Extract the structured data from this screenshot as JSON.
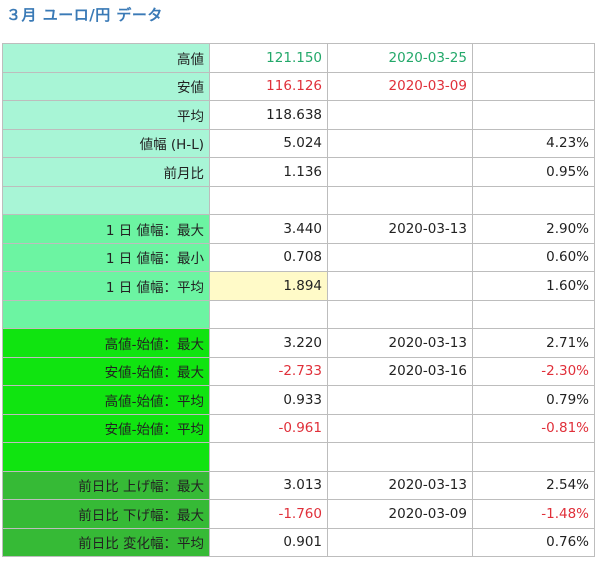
{
  "title": "３月 ユーロ/円 データ",
  "rows": [
    {
      "label": "高値",
      "value": "121.150",
      "date": "2020-03-25",
      "pct": "",
      "band": "g1",
      "value_color": "green",
      "date_color": "green",
      "pct_color": ""
    },
    {
      "label": "安値",
      "value": "116.126",
      "date": "2020-03-09",
      "pct": "",
      "band": "g1",
      "value_color": "red",
      "date_color": "red",
      "pct_color": ""
    },
    {
      "label": "平均",
      "value": "118.638",
      "date": "",
      "pct": "",
      "band": "g1",
      "value_color": "",
      "date_color": "",
      "pct_color": ""
    },
    {
      "label": "値幅 (H-L)",
      "value": "5.024",
      "date": "",
      "pct": "4.23%",
      "band": "g1",
      "value_color": "",
      "date_color": "",
      "pct_color": ""
    },
    {
      "label": "前月比",
      "value": "1.136",
      "date": "",
      "pct": "0.95%",
      "band": "g1",
      "value_color": "",
      "date_color": "",
      "pct_color": ""
    },
    {
      "label": "",
      "value": "",
      "date": "",
      "pct": "",
      "band": "g1",
      "value_color": "",
      "date_color": "",
      "pct_color": ""
    },
    {
      "label": "1 日 値幅：最大",
      "value": "3.440",
      "date": "2020-03-13",
      "pct": "2.90%",
      "band": "g2",
      "value_color": "",
      "date_color": "",
      "pct_color": ""
    },
    {
      "label": "1 日 値幅：最小",
      "value": "0.708",
      "date": "",
      "pct": "0.60%",
      "band": "g2",
      "value_color": "",
      "date_color": "",
      "pct_color": ""
    },
    {
      "label": "1 日 値幅：平均",
      "value": "1.894",
      "date": "",
      "pct": "1.60%",
      "band": "g2",
      "value_color": "",
      "date_color": "",
      "pct_color": "",
      "value_highlight": true
    },
    {
      "label": "",
      "value": "",
      "date": "",
      "pct": "",
      "band": "g2",
      "value_color": "",
      "date_color": "",
      "pct_color": ""
    },
    {
      "label": "高値-始値：最大",
      "value": "3.220",
      "date": "2020-03-13",
      "pct": "2.71%",
      "band": "g3",
      "value_color": "",
      "date_color": "",
      "pct_color": ""
    },
    {
      "label": "安値-始値：最大",
      "value": "-2.733",
      "date": "2020-03-16",
      "pct": "-2.30%",
      "band": "g3",
      "value_color": "red",
      "date_color": "",
      "pct_color": "red"
    },
    {
      "label": "高値-始値：平均",
      "value": "0.933",
      "date": "",
      "pct": "0.79%",
      "band": "g3",
      "value_color": "",
      "date_color": "",
      "pct_color": ""
    },
    {
      "label": "安値-始値：平均",
      "value": "-0.961",
      "date": "",
      "pct": "-0.81%",
      "band": "g3",
      "value_color": "red",
      "date_color": "",
      "pct_color": "red"
    },
    {
      "label": "",
      "value": "",
      "date": "",
      "pct": "",
      "band": "g3",
      "value_color": "",
      "date_color": "",
      "pct_color": ""
    },
    {
      "label": "前日比 上げ幅：最大",
      "value": "3.013",
      "date": "2020-03-13",
      "pct": "2.54%",
      "band": "g4",
      "value_color": "",
      "date_color": "",
      "pct_color": ""
    },
    {
      "label": "前日比 下げ幅：最大",
      "value": "-1.760",
      "date": "2020-03-09",
      "pct": "-1.48%",
      "band": "g4",
      "value_color": "red",
      "date_color": "",
      "pct_color": "red"
    },
    {
      "label": "前日比 変化幅：平均",
      "value": "0.901",
      "date": "",
      "pct": "0.76%",
      "band": "g4",
      "value_color": "",
      "date_color": "",
      "pct_color": ""
    }
  ]
}
